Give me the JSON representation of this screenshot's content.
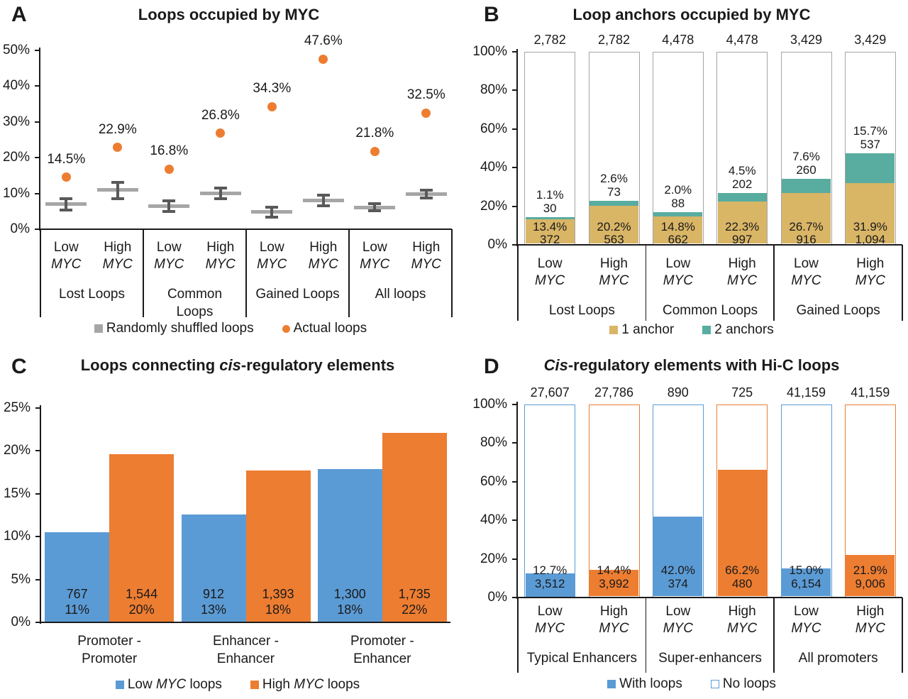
{
  "figure": {
    "panel_letters": {
      "a": "A",
      "b": "B",
      "c": "C",
      "d": "D"
    }
  },
  "colors": {
    "orange": "#ED7D31",
    "blue": "#5B9BD5",
    "tan": "#D9B566",
    "teal": "#58ACA0",
    "gray_mean": "#A6A6A6",
    "gray_whisker": "#595959",
    "bar_outline": "#A6A6A6",
    "axis": "#1A1A1A",
    "text": "#1A1A1A"
  },
  "chart_data": [
    {
      "panel": "A",
      "type": "scatter",
      "title": "Loops occupied by MYC",
      "title_parts": [
        {
          "t": "Loops occupied by MYC"
        }
      ],
      "y_axis": {
        "min": 0,
        "max": 50,
        "step": 10,
        "suffix": "%"
      },
      "groups": [
        "Lost Loops",
        "Common\nLoops",
        "Gained Loops",
        "All loops"
      ],
      "conditions": [
        {
          "line1": "Low",
          "line2": "MYC"
        },
        {
          "line1": "High",
          "line2": "MYC"
        }
      ],
      "series": [
        {
          "name": "Randomly shuffled loops",
          "means": [
            7.0,
            11.0,
            6.4,
            10.0,
            4.8,
            8.0,
            6.1,
            9.8
          ],
          "err_low": [
            5.4,
            8.6,
            4.9,
            8.5,
            3.4,
            6.5,
            5.1,
            8.7
          ],
          "err_high": [
            8.6,
            13.2,
            7.9,
            11.5,
            6.2,
            9.5,
            7.1,
            10.9
          ]
        },
        {
          "name": "Actual loops",
          "values": [
            14.5,
            22.9,
            16.8,
            26.8,
            34.3,
            47.6,
            21.8,
            32.5
          ],
          "labels": [
            "14.5%",
            "22.9%",
            "16.8%",
            "26.8%",
            "34.3%",
            "47.6%",
            "21.8%",
            "32.5%"
          ]
        }
      ],
      "legend": [
        {
          "label": "Randomly shuffled loops",
          "swatch": "square",
          "color_key": "gray_mean"
        },
        {
          "label": "Actual loops",
          "swatch": "circle",
          "color_key": "orange"
        }
      ]
    },
    {
      "panel": "B",
      "type": "stacked-bar",
      "title": "Loop anchors occupied by MYC",
      "title_parts": [
        {
          "t": "Loop anchors occupied by MYC"
        }
      ],
      "y_axis": {
        "min": 0,
        "max": 100,
        "step": 20,
        "suffix": "%"
      },
      "groups": [
        "Lost Loops",
        "Common Loops",
        "Gained Loops"
      ],
      "conditions": [
        {
          "line1": "Low",
          "line2": "MYC"
        },
        {
          "line1": "High",
          "line2": "MYC"
        }
      ],
      "bar_totals": [
        "2,782",
        "2,782",
        "4,478",
        "4,478",
        "3,429",
        "3,429"
      ],
      "bars": [
        {
          "one_anchor_pct": 13.4,
          "one_anchor_pct_label": "13.4%",
          "one_anchor_count": "372",
          "two_anchors_pct": 1.1,
          "two_anchors_pct_label": "1.1%",
          "two_anchors_count": "30"
        },
        {
          "one_anchor_pct": 20.2,
          "one_anchor_pct_label": "20.2%",
          "one_anchor_count": "563",
          "two_anchors_pct": 2.6,
          "two_anchors_pct_label": "2.6%",
          "two_anchors_count": "73"
        },
        {
          "one_anchor_pct": 14.8,
          "one_anchor_pct_label": "14.8%",
          "one_anchor_count": "662",
          "two_anchors_pct": 2.0,
          "two_anchors_pct_label": "2.0%",
          "two_anchors_count": "88"
        },
        {
          "one_anchor_pct": 22.3,
          "one_anchor_pct_label": "22.3%",
          "one_anchor_count": "997",
          "two_anchors_pct": 4.5,
          "two_anchors_pct_label": "4.5%",
          "two_anchors_count": "202"
        },
        {
          "one_anchor_pct": 26.7,
          "one_anchor_pct_label": "26.7%",
          "one_anchor_count": "916",
          "two_anchors_pct": 7.6,
          "two_anchors_pct_label": "7.6%",
          "two_anchors_count": "260"
        },
        {
          "one_anchor_pct": 31.9,
          "one_anchor_pct_label": "31.9%",
          "one_anchor_count": "1,094",
          "two_anchors_pct": 15.7,
          "two_anchors_pct_label": "15.7%",
          "two_anchors_count": "537"
        }
      ],
      "legend": [
        {
          "label": "1 anchor",
          "swatch": "square",
          "color_key": "tan"
        },
        {
          "label": "2 anchors",
          "swatch": "square",
          "color_key": "teal"
        }
      ]
    },
    {
      "panel": "C",
      "type": "grouped-bar",
      "title": "Loops connecting cis-regulatory elements",
      "title_parts": [
        {
          "t": "Loops connecting "
        },
        {
          "t": "cis",
          "i": true
        },
        {
          "t": "-regulatory elements"
        }
      ],
      "y_axis": {
        "min": 0,
        "max": 25,
        "step": 5,
        "suffix": "%"
      },
      "groups": [
        "Promoter -\nPromoter",
        "Enhancer -\nEnhancer",
        "Promoter -\nEnhancer"
      ],
      "series": [
        {
          "name": "Low MYC loops",
          "name_parts": [
            {
              "t": "Low "
            },
            {
              "t": "MYC",
              "i": true
            },
            {
              "t": " loops"
            }
          ],
          "color_key": "blue",
          "values": [
            10.5,
            12.6,
            17.9
          ],
          "count_labels": [
            "767",
            "912",
            "1,300"
          ],
          "pct_labels": [
            "11%",
            "13%",
            "18%"
          ]
        },
        {
          "name": "High MYC loops",
          "name_parts": [
            {
              "t": "High "
            },
            {
              "t": "MYC",
              "i": true
            },
            {
              "t": " loops"
            }
          ],
          "color_key": "orange",
          "values": [
            19.6,
            17.7,
            22.1
          ],
          "count_labels": [
            "1,544",
            "1,393",
            "1,735"
          ],
          "pct_labels": [
            "20%",
            "18%",
            "22%"
          ]
        }
      ],
      "legend": [
        {
          "label": "Low MYC loops",
          "label_parts": [
            {
              "t": "Low "
            },
            {
              "t": "MYC",
              "i": true
            },
            {
              "t": " loops"
            }
          ],
          "swatch": "square",
          "color_key": "blue"
        },
        {
          "label": "High MYC loops",
          "label_parts": [
            {
              "t": "High "
            },
            {
              "t": "MYC",
              "i": true
            },
            {
              "t": " loops"
            }
          ],
          "swatch": "square",
          "color_key": "orange"
        }
      ]
    },
    {
      "panel": "D",
      "type": "stacked-bar",
      "title": "Cis-regulatory elements with Hi-C loops",
      "title_parts": [
        {
          "t": "Cis",
          "i": true
        },
        {
          "t": "-regulatory elements with Hi-C loops"
        }
      ],
      "y_axis": {
        "min": 0,
        "max": 100,
        "step": 20,
        "suffix": "%"
      },
      "groups": [
        "Typical Enhancers",
        "Super-enhancers",
        "All promoters"
      ],
      "conditions": [
        {
          "line1": "Low",
          "line2": "MYC"
        },
        {
          "line1": "High",
          "line2": "MYC"
        }
      ],
      "bar_totals": [
        "27,607",
        "27,786",
        "890",
        "725",
        "41,159",
        "41,159"
      ],
      "bars": [
        {
          "with_loops_pct": 12.7,
          "pct_label": "12.7%",
          "count_label": "3,512",
          "color_key": "blue"
        },
        {
          "with_loops_pct": 14.4,
          "pct_label": "14.4%",
          "count_label": "3,992",
          "color_key": "orange"
        },
        {
          "with_loops_pct": 42.0,
          "pct_label": "42.0%",
          "count_label": "374",
          "color_key": "blue"
        },
        {
          "with_loops_pct": 66.2,
          "pct_label": "66.2%",
          "count_label": "480",
          "color_key": "orange"
        },
        {
          "with_loops_pct": 15.0,
          "pct_label": "15.0%",
          "count_label": "6,154",
          "color_key": "blue"
        },
        {
          "with_loops_pct": 21.9,
          "pct_label": "21.9%",
          "count_label": "9,006",
          "color_key": "orange"
        }
      ],
      "legend": [
        {
          "label": "With loops",
          "swatch": "square",
          "color_key": "blue"
        },
        {
          "label": "No loops",
          "swatch": "outline",
          "color_key": "blue"
        }
      ]
    }
  ]
}
